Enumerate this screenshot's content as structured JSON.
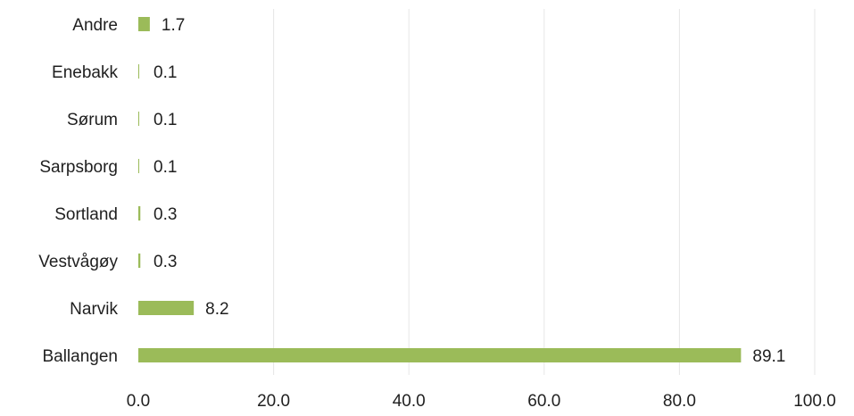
{
  "chart_data": {
    "type": "bar",
    "orientation": "horizontal",
    "categories": [
      "Andre",
      "Enebakk",
      "Sørum",
      "Sarpsborg",
      "Sortland",
      "Vestvågøy",
      "Narvik",
      "Ballangen"
    ],
    "values": [
      1.7,
      0.1,
      0.1,
      0.1,
      0.3,
      0.3,
      8.2,
      89.1
    ],
    "value_labels": [
      "1.7",
      "0.1",
      "0.1",
      "0.1",
      "0.3",
      "0.3",
      "8.2",
      "89.1"
    ],
    "x_ticks": [
      "0.0",
      "20.0",
      "40.0",
      "60.0",
      "80.0",
      "100.0"
    ],
    "xlim": [
      0,
      100
    ],
    "grid": "vertical",
    "legend": "none",
    "colors": {
      "bar": "#9bbb59",
      "grid": "#e6e6e6",
      "text": "#1f1f1f"
    }
  }
}
